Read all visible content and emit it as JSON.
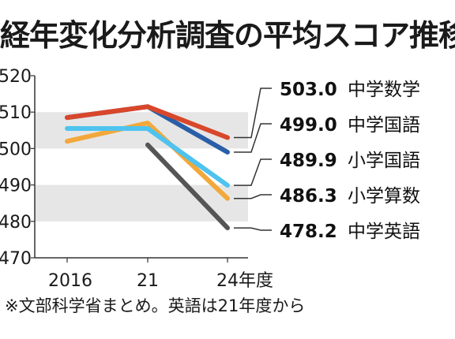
{
  "title": "経年変化分析調査の平均スコア推移",
  "note": "※文部科学省まとめ。英語は21年度から",
  "chart_data": {
    "type": "line",
    "title": "経年変化分析調査の平均スコア推移",
    "categories": [
      "2016",
      "21",
      "24年度"
    ],
    "ylim": [
      470,
      520
    ],
    "yticks": [
      470,
      480,
      490,
      500,
      510,
      520
    ],
    "series": [
      {
        "name": "中学数学",
        "values": [
          508.5,
          511.5,
          503.0
        ],
        "final_label": "503.0",
        "color": "#d9472b"
      },
      {
        "name": "中学国語",
        "values": [
          508.5,
          511.5,
          499.0
        ],
        "final_label": "499.0",
        "color": "#2a5fa8"
      },
      {
        "name": "小学国語",
        "values": [
          505.5,
          505.5,
          489.9
        ],
        "final_label": "489.9",
        "color": "#4fc3ef"
      },
      {
        "name": "小学算数",
        "values": [
          502.0,
          507.0,
          486.3
        ],
        "final_label": "486.3",
        "color": "#f2a83b"
      },
      {
        "name": "中学英語",
        "values": [
          null,
          501.0,
          478.2
        ],
        "final_label": "478.2",
        "color": "#555555"
      }
    ]
  }
}
